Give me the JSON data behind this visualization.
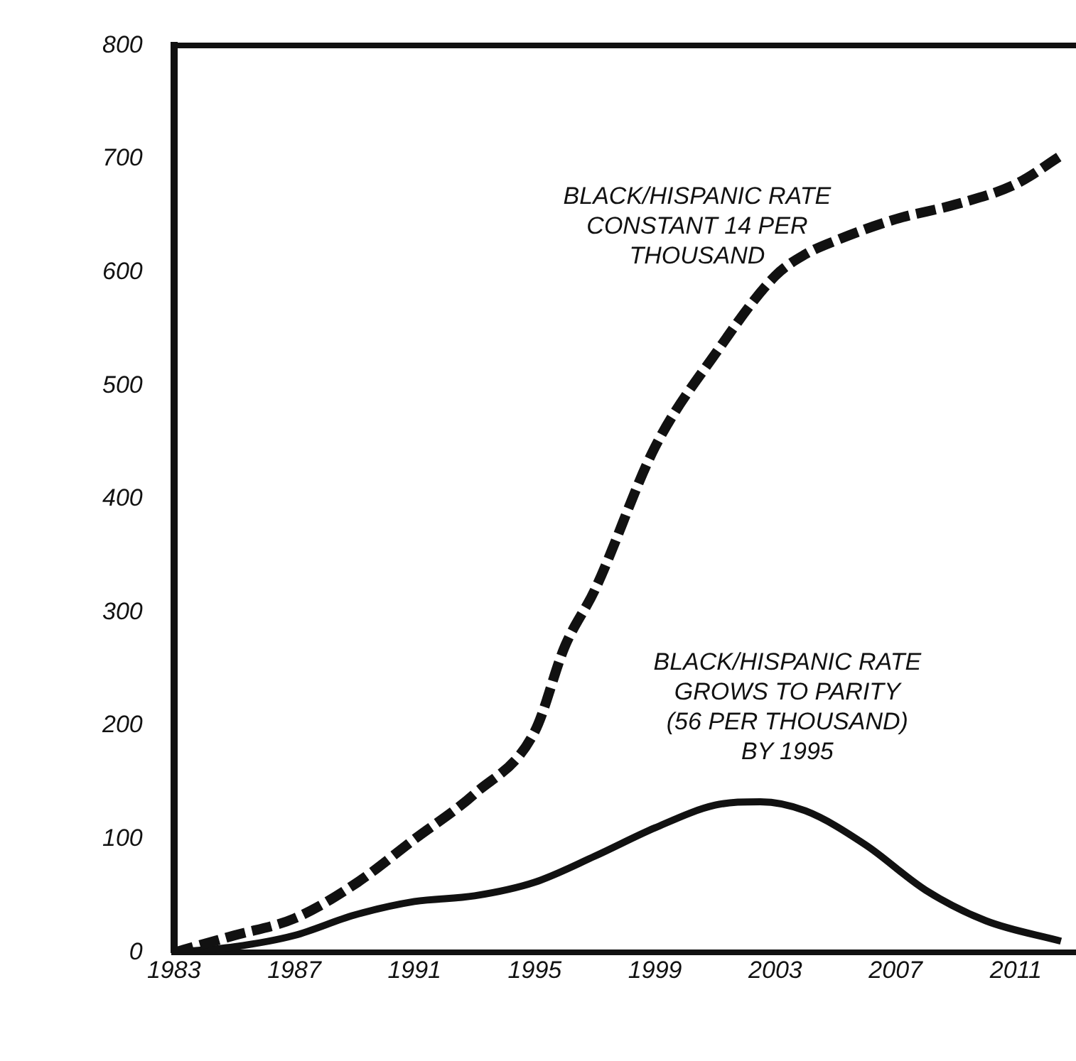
{
  "chart_data": {
    "type": "line",
    "xlim": [
      1983,
      2013
    ],
    "xticks": [
      1983,
      1987,
      1991,
      1995,
      1999,
      2003,
      2007,
      2011
    ],
    "ylim": [
      0,
      800
    ],
    "yticks": [
      0,
      100,
      200,
      300,
      400,
      500,
      600,
      700,
      800
    ],
    "grid": false,
    "legend": false,
    "marker": "none",
    "series": [
      {
        "color": "#111111",
        "line_style": "dashed",
        "x": [
          1983,
          1985,
          1987,
          1989,
          1991,
          1993,
          1995,
          1996,
          1997,
          1999,
          2001,
          2003,
          2004,
          2005,
          2007,
          2009,
          2011,
          2012.5
        ],
        "values": [
          0,
          15,
          30,
          60,
          100,
          140,
          195,
          270,
          320,
          446,
          528,
          597,
          616,
          628,
          647,
          660,
          678,
          703
        ]
      },
      {
        "color": "#111111",
        "line_style": "solid",
        "x": [
          1983,
          1985,
          1987,
          1989,
          1991,
          1993,
          1995,
          1997,
          1999,
          2001,
          2002.5,
          2004,
          2006,
          2008,
          2010,
          2012.5
        ],
        "values": [
          0,
          5,
          15,
          33,
          45,
          50,
          62,
          85,
          110,
          130,
          133,
          125,
          95,
          55,
          28,
          10
        ]
      }
    ],
    "annotations": [
      "BLACK/HISPANIC RATE\nCONSTANT 14 PER\nTHOUSAND",
      "BLACK/HISPANIC RATE\nGROWS TO PARITY\n(56 PER THOUSAND)\nBY 1995"
    ]
  }
}
